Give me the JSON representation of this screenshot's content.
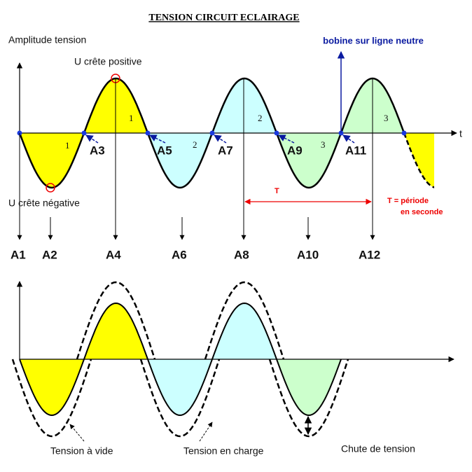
{
  "title": "TENSION CIRCUIT ECLAIRAGE",
  "top_diagram": {
    "y_axis_label": "Amplitude tension",
    "x_axis_label": "t",
    "peak_positive_label": "U crête positive",
    "peak_negative_label": "U crête négative",
    "neutral_coil_label": "bobine sur ligne neutre",
    "half_wave_labels": [
      "1",
      "1",
      "2",
      "2",
      "3",
      "3"
    ],
    "points": [
      "A1",
      "A2",
      "A3",
      "A4",
      "A5",
      "A6",
      "A7",
      "A8",
      "A9",
      "A10",
      "A11",
      "A12"
    ],
    "period_label": "T",
    "period_note": [
      "T = période",
      "en seconde"
    ]
  },
  "bottom_diagram": {
    "labels": [
      "Tension à vide",
      "Tension en charge",
      "Chute de tension"
    ]
  }
}
